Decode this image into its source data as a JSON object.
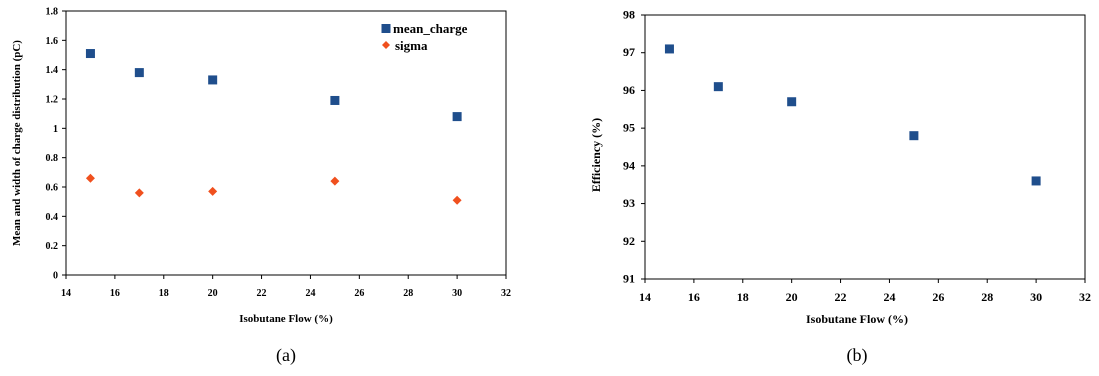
{
  "chart_data": [
    {
      "type": "scatter",
      "caption": "(a)",
      "xlabel": "Isobutane Flow (%)",
      "ylabel": "Mean and width of charge distribution (pC)",
      "xlim": [
        14,
        32
      ],
      "ylim": [
        0,
        1.8
      ],
      "xticks": [
        "14",
        "16",
        "18",
        "20",
        "22",
        "24",
        "26",
        "28",
        "30",
        "32"
      ],
      "yticks": [
        "0",
        "0.2",
        "0.4",
        "0.6",
        "0.8",
        "1",
        "1.2",
        "1.4",
        "1.6",
        "1.8"
      ],
      "legend_position": "top-right",
      "grid": false,
      "series": [
        {
          "name": "mean_charge",
          "marker": "square",
          "color": "#1f4e8c",
          "x": [
            15,
            17,
            20,
            25,
            30
          ],
          "y": [
            1.51,
            1.38,
            1.33,
            1.19,
            1.08
          ]
        },
        {
          "name": "sigma",
          "marker": "diamond",
          "color": "#f0501e",
          "x": [
            15,
            17,
            20,
            25,
            30
          ],
          "y": [
            0.66,
            0.56,
            0.57,
            0.64,
            0.51
          ]
        }
      ]
    },
    {
      "type": "scatter",
      "caption": "(b)",
      "xlabel": "Isobutane Flow (%)",
      "ylabel": "Efficiency (%)",
      "xlim": [
        14,
        32
      ],
      "ylim": [
        91,
        98
      ],
      "xticks": [
        "14",
        "16",
        "18",
        "20",
        "22",
        "24",
        "26",
        "28",
        "30",
        "32"
      ],
      "yticks": [
        "91",
        "92",
        "93",
        "94",
        "95",
        "96",
        "97",
        "98"
      ],
      "grid": false,
      "series": [
        {
          "marker": "square",
          "color": "#1f4e8c",
          "x": [
            15,
            17,
            20,
            25,
            30
          ],
          "y": [
            97.1,
            96.1,
            95.7,
            94.8,
            93.6
          ]
        }
      ]
    }
  ]
}
